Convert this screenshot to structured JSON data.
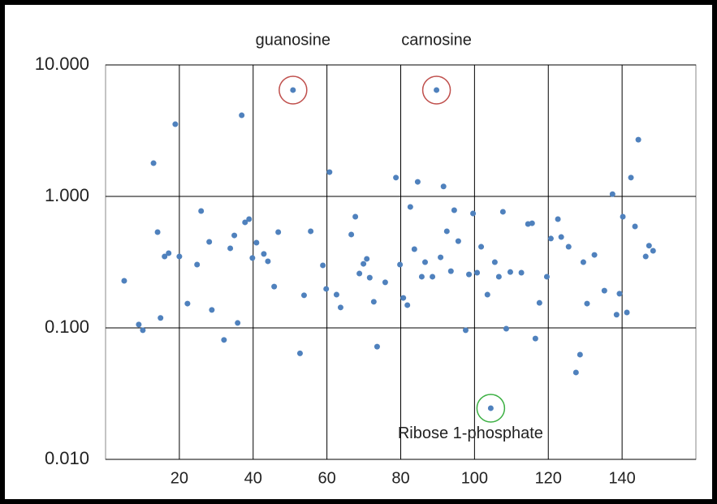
{
  "chart_data": {
    "type": "scatter",
    "color": "#4f81bd",
    "yscale": "log",
    "grid": true,
    "xlim": [
      0,
      160
    ],
    "xticks": [
      20,
      40,
      60,
      80,
      100,
      120,
      140
    ],
    "ylim": [
      0.01,
      10
    ],
    "yticks": [
      {
        "value": 0.01,
        "label": "0.010"
      },
      {
        "value": 0.1,
        "label": "0.100"
      },
      {
        "value": 1,
        "label": "1.000"
      },
      {
        "value": 10,
        "label": "10.000"
      }
    ],
    "x": [
      5.05,
      9.0,
      10.1,
      13.0,
      14.1,
      14.9,
      16.0,
      17.1,
      18.9,
      20.0,
      22.2,
      24.8,
      25.9,
      28.1,
      28.8,
      32.1,
      33.8,
      34.9,
      35.8,
      36.9,
      37.8,
      38.9,
      39.8,
      40.9,
      42.9,
      44.0,
      45.7,
      46.8,
      50.8,
      52.7,
      53.8,
      55.6,
      58.9,
      59.8,
      60.7,
      62.6,
      63.7,
      66.6,
      67.7,
      68.8,
      69.9,
      70.8,
      71.6,
      72.7,
      73.6,
      75.8,
      78.7,
      79.8,
      80.7,
      81.8,
      82.6,
      83.7,
      84.6,
      85.7,
      86.6,
      88.6,
      89.7,
      90.8,
      91.6,
      92.5,
      93.6,
      94.5,
      95.6,
      97.6,
      98.5,
      99.6,
      100.7,
      101.8,
      103.5,
      104.4,
      105.5,
      106.6,
      107.7,
      108.6,
      109.7,
      112.7,
      114.5,
      115.6,
      116.5,
      117.6,
      119.6,
      120.7,
      122.6,
      123.5,
      125.5,
      127.5,
      128.6,
      129.5,
      130.5,
      132.5,
      135.2,
      137.4,
      138.5,
      139.3,
      140.2,
      141.3,
      142.4,
      143.5,
      144.4,
      146.4,
      147.3,
      148.4
    ],
    "values": [
      0.228,
      0.106,
      0.096,
      1.79,
      0.535,
      0.119,
      0.349,
      0.37,
      3.54,
      0.349,
      0.153,
      0.303,
      0.774,
      0.451,
      0.137,
      0.081,
      0.403,
      0.505,
      0.109,
      4.14,
      0.635,
      0.672,
      0.34,
      0.445,
      0.365,
      0.321,
      0.206,
      0.535,
      6.44,
      0.064,
      0.177,
      0.543,
      0.299,
      0.198,
      1.53,
      0.179,
      0.143,
      0.513,
      0.701,
      0.259,
      0.307,
      0.335,
      0.241,
      0.158,
      0.072,
      0.222,
      1.39,
      0.303,
      0.169,
      0.149,
      0.832,
      0.397,
      1.29,
      0.245,
      0.316,
      0.245,
      6.44,
      0.344,
      1.19,
      0.543,
      0.27,
      0.785,
      0.457,
      0.096,
      0.255,
      0.742,
      0.263,
      0.414,
      0.179,
      0.0245,
      0.316,
      0.245,
      0.764,
      0.0986,
      0.266,
      0.263,
      0.617,
      0.625,
      0.083,
      0.155,
      0.245,
      0.478,
      0.672,
      0.491,
      0.414,
      0.0458,
      0.0626,
      0.316,
      0.153,
      0.359,
      0.192,
      1.04,
      0.126,
      0.182,
      0.701,
      0.131,
      1.39,
      0.591,
      2.7,
      0.349,
      0.422,
      0.386
    ],
    "annotations": [
      {
        "text": "guanosine",
        "x": 50.8,
        "y": 6.44,
        "color": "#c0504d"
      },
      {
        "text": "carnosine",
        "x": 89.7,
        "y": 6.44,
        "color": "#c0504d"
      },
      {
        "text": "Ribose 1-phosphate",
        "x": 104.4,
        "y": 0.0245,
        "color": "#3cb043"
      }
    ]
  }
}
